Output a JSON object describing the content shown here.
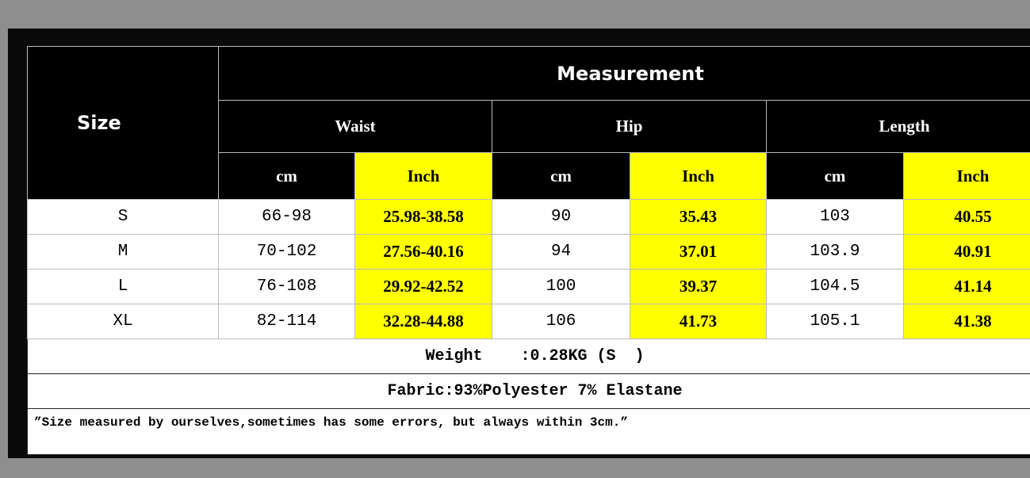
{
  "header": {
    "size": "Size",
    "measurement": "Measurement",
    "groups": [
      "Waist",
      "Hip",
      "Length"
    ],
    "units": [
      "cm",
      "Inch",
      "cm",
      "Inch",
      "cm",
      "Inch"
    ]
  },
  "rows": [
    {
      "size": "S",
      "waist_cm": "66-98",
      "waist_in": "25.98-38.58",
      "hip_cm": "90",
      "hip_in": "35.43",
      "length_cm": "103",
      "length_in": "40.55"
    },
    {
      "size": "M",
      "waist_cm": "70-102",
      "waist_in": "27.56-40.16",
      "hip_cm": "94",
      "hip_in": "37.01",
      "length_cm": "103.9",
      "length_in": "40.91"
    },
    {
      "size": "L",
      "waist_cm": "76-108",
      "waist_in": "29.92-42.52",
      "hip_cm": "100",
      "hip_in": "39.37",
      "length_cm": "104.5",
      "length_in": "41.14"
    },
    {
      "size": "XL",
      "waist_cm": "82-114",
      "waist_in": "32.28-44.88",
      "hip_cm": "106",
      "hip_in": "41.73",
      "length_cm": "105.1",
      "length_in": "41.38"
    }
  ],
  "weight": "Weight    :0.28KG (S  )",
  "fabric": "Fabric:93%Polyester 7% Elastane",
  "note": "”Size measured by ourselves,sometimes has some errors, but always within 3cm.”",
  "colors": {
    "header_bg": "#000000",
    "inch_bg": "#ffff00",
    "page_bg": "#8e8e8e"
  }
}
